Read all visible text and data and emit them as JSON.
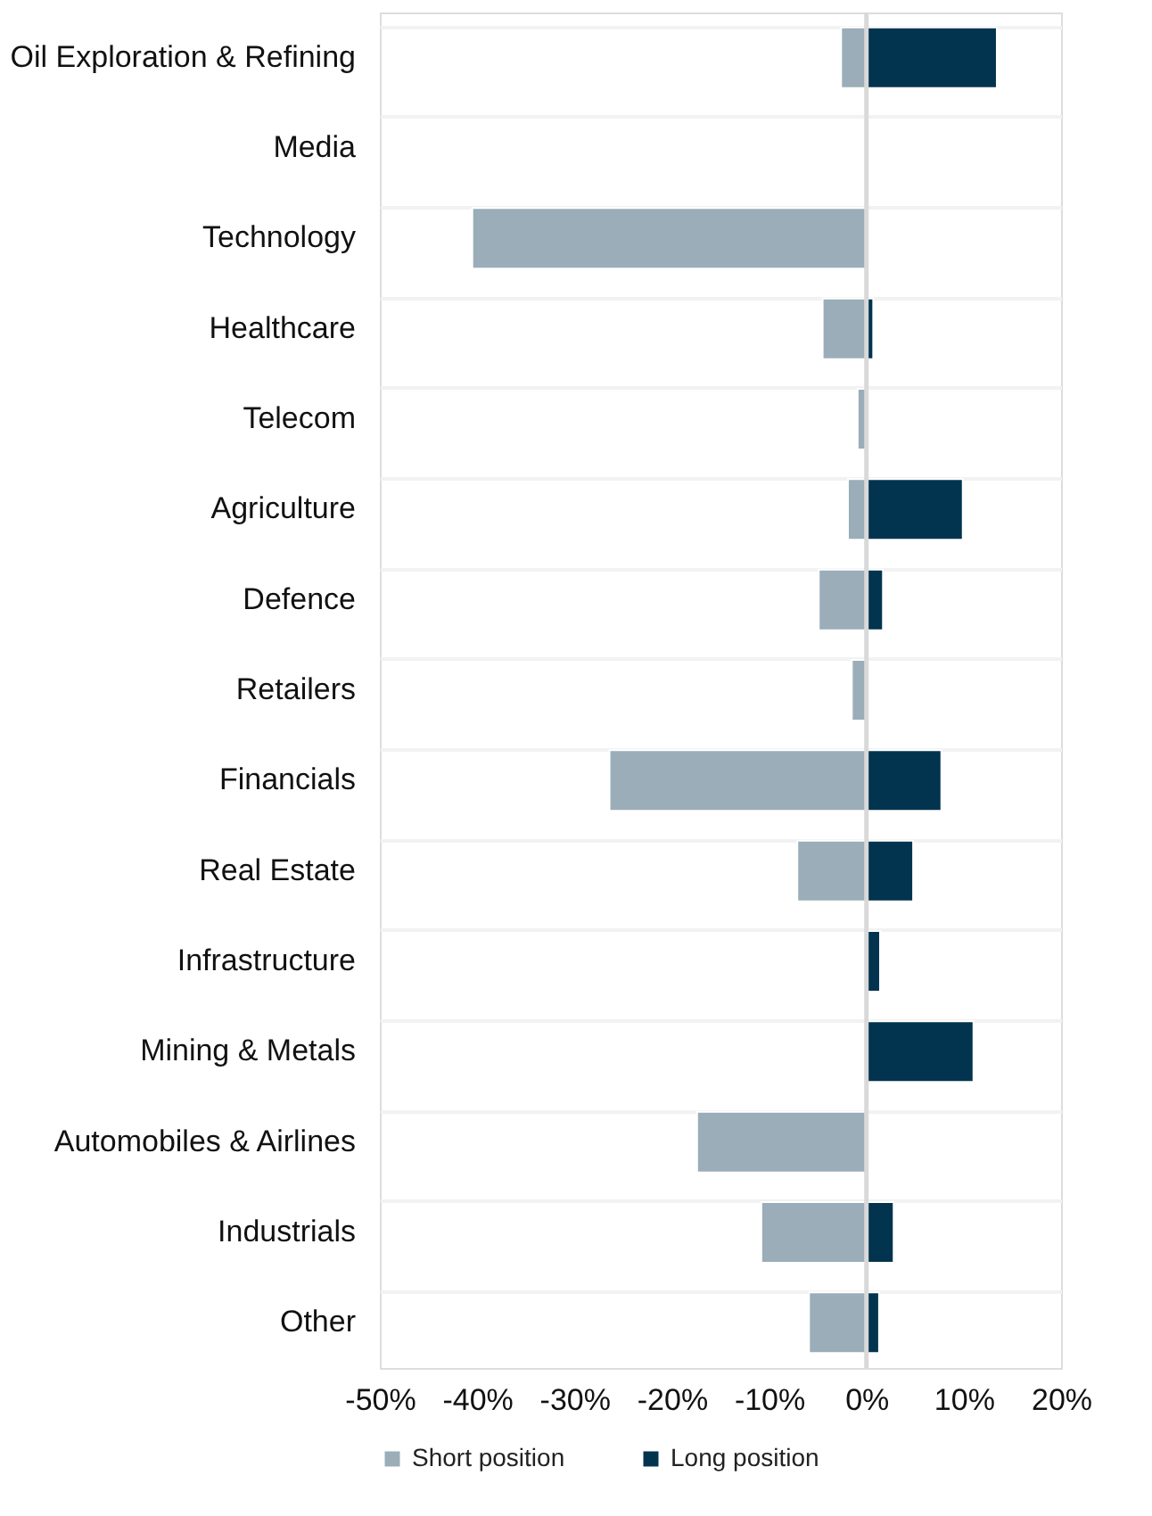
{
  "chart_data": {
    "type": "bar",
    "orientation": "horizontal",
    "stacked": true,
    "categories": [
      "Oil Exploration & Refining",
      "Media",
      "Technology",
      "Healthcare",
      "Telecom",
      "Agriculture",
      "Defence",
      "Retailers",
      "Financials",
      "Real Estate",
      "Infrastructure",
      "Mining & Metals",
      "Automobiles & Airlines",
      "Industrials",
      "Other"
    ],
    "series": [
      {
        "name": "Short position",
        "color": "#9aadb8",
        "values": [
          -2.6,
          null,
          -40.5,
          -4.5,
          -0.9,
          -1.9,
          -4.9,
          -1.5,
          -26.4,
          -7.1,
          null,
          null,
          -17.4,
          -10.8,
          -5.9
        ]
      },
      {
        "name": "Long position",
        "color": "#02344f",
        "values": [
          13.4,
          null,
          null,
          0.7,
          null,
          9.9,
          1.7,
          null,
          7.7,
          4.8,
          1.4,
          11.0,
          null,
          2.8,
          1.3
        ]
      }
    ],
    "xlim": [
      -50,
      20
    ],
    "xticks": [
      {
        "value": -50,
        "label": "-50%"
      },
      {
        "value": -40,
        "label": "-40%"
      },
      {
        "value": -30,
        "label": "-30%"
      },
      {
        "value": -20,
        "label": "-20%"
      },
      {
        "value": -10,
        "label": "-10%"
      },
      {
        "value": 0,
        "label": "0%"
      },
      {
        "value": 10,
        "label": "10%"
      },
      {
        "value": 20,
        "label": "20%"
      }
    ],
    "ref_lines": [
      {
        "axis": "x",
        "value": 0,
        "color": "#d9d9d9"
      }
    ],
    "grid": "y",
    "legend": "bottom"
  }
}
